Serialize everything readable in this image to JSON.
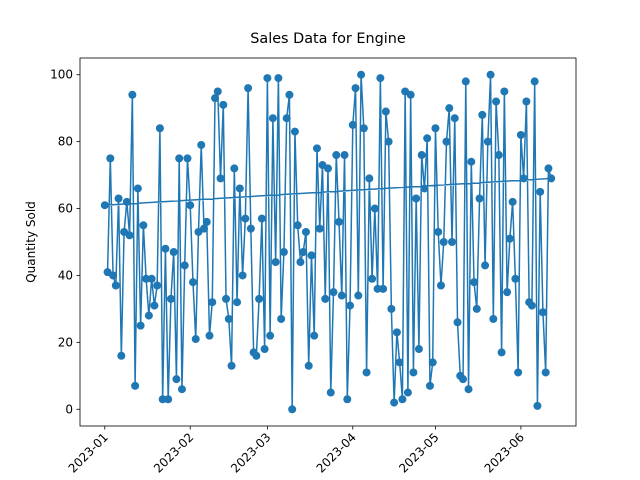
{
  "chart_data": {
    "type": "line",
    "title": "Sales Data for Engine",
    "ylabel": "Quantity Sold",
    "x": [
      "2023-01-02",
      "2023-01-03",
      "2023-01-04",
      "2023-01-05",
      "2023-01-06",
      "2023-01-07",
      "2023-01-08",
      "2023-01-09",
      "2023-01-10",
      "2023-01-11",
      "2023-01-12",
      "2023-01-13",
      "2023-01-14",
      "2023-01-15",
      "2023-01-16",
      "2023-01-17",
      "2023-01-18",
      "2023-01-19",
      "2023-01-20",
      "2023-01-21",
      "2023-01-22",
      "2023-01-23",
      "2023-01-24",
      "2023-01-25",
      "2023-01-26",
      "2023-01-27",
      "2023-01-28",
      "2023-01-29",
      "2023-01-30",
      "2023-01-31",
      "2023-02-01",
      "2023-02-02",
      "2023-02-03",
      "2023-02-04",
      "2023-02-05",
      "2023-02-06",
      "2023-02-07",
      "2023-02-08",
      "2023-02-09",
      "2023-02-10",
      "2023-02-11",
      "2023-02-12",
      "2023-02-13",
      "2023-02-14",
      "2023-02-15",
      "2023-02-16",
      "2023-02-17",
      "2023-02-18",
      "2023-02-19",
      "2023-02-20",
      "2023-02-21",
      "2023-02-22",
      "2023-02-23",
      "2023-02-24",
      "2023-02-25",
      "2023-02-26",
      "2023-02-27",
      "2023-02-28",
      "2023-03-01",
      "2023-03-02",
      "2023-03-03",
      "2023-03-04",
      "2023-03-05",
      "2023-03-06",
      "2023-03-07",
      "2023-03-08",
      "2023-03-09",
      "2023-03-10",
      "2023-03-11",
      "2023-03-12",
      "2023-03-13",
      "2023-03-14",
      "2023-03-15",
      "2023-03-16",
      "2023-03-17",
      "2023-03-18",
      "2023-03-19",
      "2023-03-20",
      "2023-03-21",
      "2023-03-22",
      "2023-03-23",
      "2023-03-24",
      "2023-03-25",
      "2023-03-26",
      "2023-03-27",
      "2023-03-28",
      "2023-03-29",
      "2023-03-30",
      "2023-03-31",
      "2023-04-01",
      "2023-04-02",
      "2023-04-03",
      "2023-04-04",
      "2023-04-05",
      "2023-04-06",
      "2023-04-07",
      "2023-04-08",
      "2023-04-09",
      "2023-04-10",
      "2023-04-11",
      "2023-04-12",
      "2023-04-13",
      "2023-04-14",
      "2023-04-15",
      "2023-04-16",
      "2023-04-17",
      "2023-04-18",
      "2023-04-19",
      "2023-04-20",
      "2023-04-21",
      "2023-04-22",
      "2023-04-23",
      "2023-04-24",
      "2023-04-25",
      "2023-04-26",
      "2023-04-27",
      "2023-04-28",
      "2023-04-29",
      "2023-04-30",
      "2023-05-01",
      "2023-05-02",
      "2023-05-03",
      "2023-05-04",
      "2023-05-05",
      "2023-05-06",
      "2023-05-07",
      "2023-05-08",
      "2023-05-09",
      "2023-05-10",
      "2023-05-11",
      "2023-05-12",
      "2023-05-13",
      "2023-05-14",
      "2023-05-15",
      "2023-05-16",
      "2023-05-17",
      "2023-05-18",
      "2023-05-19",
      "2023-05-20",
      "2023-05-21",
      "2023-05-22",
      "2023-05-23",
      "2023-05-24",
      "2023-05-25",
      "2023-05-26",
      "2023-05-27",
      "2023-05-28",
      "2023-05-29",
      "2023-05-30",
      "2023-05-31",
      "2023-06-01",
      "2023-06-02",
      "2023-06-03",
      "2023-06-04",
      "2023-06-05",
      "2023-06-06",
      "2023-06-07",
      "2023-06-08",
      "2023-06-09",
      "2023-06-10",
      "2023-06-11",
      "2023-06-12",
      "2023-01-01"
    ],
    "series": [
      {
        "color": "#1f77b4",
        "values": [
          41,
          75,
          40,
          37,
          63,
          16,
          53,
          62,
          52,
          94,
          7,
          66,
          25,
          55,
          39,
          28,
          39,
          31,
          37,
          84,
          3,
          48,
          3,
          33,
          47,
          9,
          75,
          6,
          43,
          75,
          61,
          38,
          21,
          53,
          79,
          54,
          56,
          22,
          32,
          93,
          95,
          69,
          91,
          33,
          27,
          13,
          72,
          32,
          66,
          40,
          57,
          96,
          54,
          17,
          16,
          33,
          57,
          18,
          99,
          22,
          87,
          44,
          99,
          27,
          47,
          87,
          94,
          0,
          83,
          55,
          44,
          47,
          53,
          13,
          46,
          22,
          78,
          54,
          73,
          33,
          72,
          5,
          35,
          76,
          56,
          34,
          76,
          3,
          31,
          85,
          96,
          34,
          100,
          84,
          11,
          69,
          39,
          60,
          36,
          99,
          36,
          89,
          80,
          30,
          2,
          23,
          14,
          3,
          95,
          5,
          94,
          11,
          63,
          18,
          76,
          66,
          81,
          7,
          14,
          84,
          53,
          37,
          50,
          80,
          90,
          50,
          87,
          26,
          10,
          9,
          98,
          6,
          74,
          38,
          30,
          63,
          88,
          43,
          80,
          100,
          27,
          92,
          76,
          17,
          95,
          35,
          51,
          62,
          39,
          11,
          82,
          69,
          92,
          32,
          31,
          98,
          1,
          65,
          29,
          11,
          72,
          69,
          61
        ]
      }
    ],
    "xlim": [
      "2022-12-23",
      "2023-06-21"
    ],
    "xticks": [
      {
        "value": "2023-01-01",
        "label": "2023-01"
      },
      {
        "value": "2023-02-01",
        "label": "2023-02"
      },
      {
        "value": "2023-03-01",
        "label": "2023-03"
      },
      {
        "value": "2023-04-01",
        "label": "2023-04"
      },
      {
        "value": "2023-05-01",
        "label": "2023-05"
      },
      {
        "value": "2023-06-01",
        "label": "2023-06"
      }
    ],
    "ylim": [
      -5,
      105
    ],
    "yticks": [
      0,
      20,
      40,
      60,
      80,
      100
    ],
    "grid": false
  }
}
